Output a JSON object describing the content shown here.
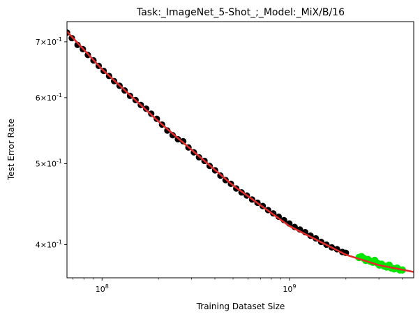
{
  "chart_data": {
    "type": "scatter",
    "title": "Task:_ImageNet_5-Shot_;_Model:_MiX/B/16",
    "xlabel": "Training Dataset Size",
    "ylabel": "Test Error Rate",
    "x_scale": "log",
    "y_scale": "log",
    "xlim": [
      65000000.0,
      4600000000.0
    ],
    "ylim": [
      0.365,
      0.74
    ],
    "x_ticks": [
      {
        "value": 100000000.0,
        "label": "10^8"
      },
      {
        "value": 1000000000.0,
        "label": "10^9"
      }
    ],
    "y_ticks": [
      {
        "value": 0.4,
        "label": "4×10^-1"
      },
      {
        "value": 0.5,
        "label": "5×10^-1"
      },
      {
        "value": 0.6,
        "label": "6×10^-1"
      },
      {
        "value": 0.7,
        "label": "7×10^-1"
      }
    ],
    "grid": false,
    "legend": "none",
    "colors": {
      "train_points": "#000000",
      "extrapolated_points": "#00e600",
      "fit_line": "#e02b2b"
    },
    "series": [
      {
        "role": "fitted-points",
        "color": "#000000",
        "x": [
          65000000.0,
          69000000.0,
          74000000.0,
          79000000.0,
          84000000.0,
          90000000.0,
          96000000.0,
          102000000.0,
          109000000.0,
          116000000.0,
          124000000.0,
          132000000.0,
          141000000.0,
          151000000.0,
          161000000.0,
          172000000.0,
          183000000.0,
          196000000.0,
          209000000.0,
          223000000.0,
          238000000.0,
          254000000.0,
          271000000.0,
          289000000.0,
          309000000.0,
          329000000.0,
          352000000.0,
          375000000.0,
          401000000.0,
          428000000.0,
          456000000.0,
          487000000.0,
          520000000.0,
          555000000.0,
          592000000.0,
          632000000.0,
          675000000.0,
          720000000.0,
          769000000.0,
          820000000.0,
          876000000.0,
          935000000.0,
          998000000.0,
          1065000000.0,
          1137000000.0,
          1213000000.0,
          1295000000.0,
          1382000000.0,
          1476000000.0,
          1575000000.0,
          1681000000.0,
          1794000000.0,
          1915000000.0,
          2000000000.0
        ],
        "y": [
          0.718,
          0.707,
          0.694,
          0.686,
          0.675,
          0.665,
          0.655,
          0.646,
          0.637,
          0.628,
          0.62,
          0.612,
          0.603,
          0.596,
          0.588,
          0.582,
          0.574,
          0.566,
          0.557,
          0.548,
          0.541,
          0.535,
          0.532,
          0.523,
          0.516,
          0.509,
          0.504,
          0.497,
          0.491,
          0.484,
          0.478,
          0.473,
          0.467,
          0.462,
          0.458,
          0.453,
          0.449,
          0.445,
          0.44,
          0.436,
          0.432,
          0.428,
          0.424,
          0.42,
          0.417,
          0.414,
          0.41,
          0.407,
          0.403,
          0.4,
          0.397,
          0.395,
          0.392,
          0.391
        ]
      },
      {
        "role": "extrapolated-points",
        "color": "#00e600",
        "x": [
          2350000000.0,
          2420000000.0,
          2500000000.0,
          2550000000.0,
          2620000000.0,
          2700000000.0,
          2780000000.0,
          2850000000.0,
          2950000000.0,
          3020000000.0,
          3100000000.0,
          3200000000.0,
          3300000000.0,
          3400000000.0,
          3500000000.0,
          3620000000.0,
          3750000000.0,
          3880000000.0,
          4000000000.0
        ],
        "y": [
          0.386,
          0.387,
          0.385,
          0.383,
          0.384,
          0.382,
          0.381,
          0.383,
          0.38,
          0.378,
          0.379,
          0.377,
          0.376,
          0.378,
          0.375,
          0.374,
          0.375,
          0.373,
          0.373
        ]
      },
      {
        "role": "fit-curve",
        "color": "#e02b2b",
        "x": [
          65000000.0,
          100000000.0,
          200000000.0,
          500000000.0,
          1000000000.0,
          2000000000.0,
          3000000000.0,
          4600000000.0
        ],
        "y": [
          0.72,
          0.649,
          0.562,
          0.471,
          0.421,
          0.389,
          0.378,
          0.371
        ]
      }
    ]
  }
}
